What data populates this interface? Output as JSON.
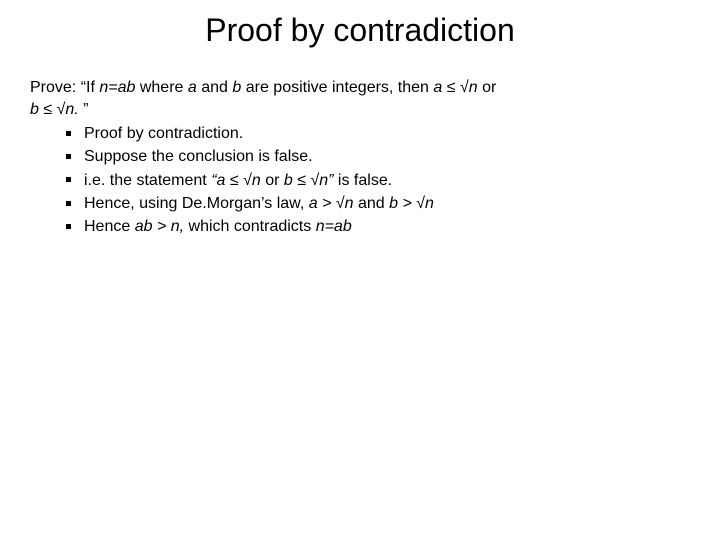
{
  "colors": {
    "background": "#ffffff",
    "text": "#000000",
    "bullet": "#000000"
  },
  "typography": {
    "family": "Comic Sans MS",
    "title_fontsize": 32,
    "body_fontsize": 16
  },
  "title": "Proof by contradiction",
  "statement": {
    "lead": "Prove: ",
    "quote_open": "“If ",
    "eq1": "n=ab",
    "mid1": " where ",
    "a": "a",
    "mid2": " and ",
    "b": "b",
    "mid3": " are positive integers, then  ",
    "cond_a": "a ≤ √n",
    "mid4": "  or ",
    "cond_b_line2_prefix": "b ≤ √n.",
    "quote_close": " ”"
  },
  "bullets": [
    {
      "plain": "Proof by contradiction."
    },
    {
      "plain": "Suppose the conclusion is false."
    },
    {
      "p1": "i.e. the statement ",
      "it1": "“a ≤ √n ",
      "p2": " or ",
      "it2": "b ≤ √n” ",
      "p3": " is false."
    },
    {
      "p1": "Hence, using De.Morgan’s law, ",
      "it1": "a > √n",
      "p2": "  and ",
      "it2": "b > √n"
    },
    {
      "p1": "Hence ",
      "it1": "ab > n,",
      "p2": " which contradicts ",
      "it2": " n=ab"
    }
  ]
}
